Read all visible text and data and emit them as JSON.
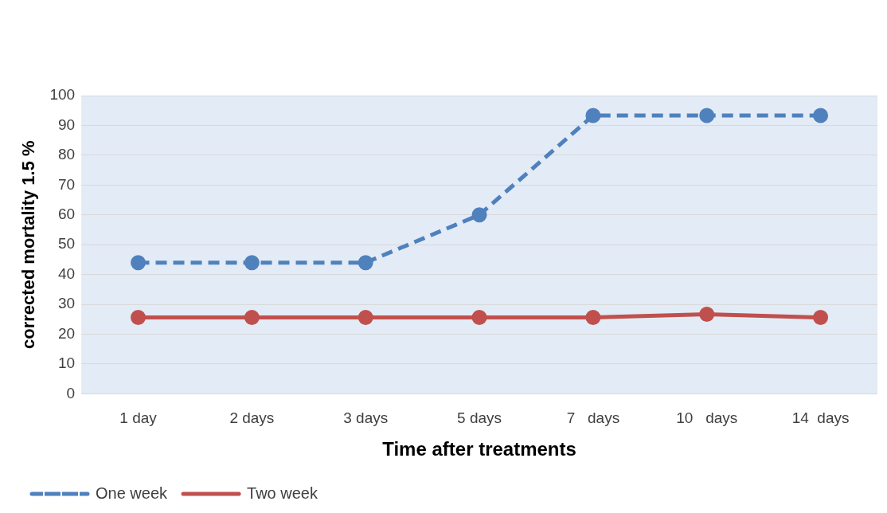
{
  "chart_data": {
    "type": "line",
    "xlabel": "Time after treatments",
    "ylabel": "corrected mortality 1.5 %",
    "categories": [
      "1 day",
      "2 days",
      "3 days",
      "5 days",
      "7   days",
      "10   days",
      "14  days"
    ],
    "series": [
      {
        "name": "One week",
        "color": "#4f81bd",
        "line_style": "dashed",
        "values": [
          44,
          44,
          44,
          60,
          93.3,
          93.3,
          93.3
        ]
      },
      {
        "name": "Two week",
        "color": "#c0504d",
        "line_style": "solid",
        "values": [
          25.6,
          25.6,
          25.6,
          25.6,
          25.6,
          26.7,
          25.6
        ]
      }
    ],
    "ylim": [
      0,
      100
    ],
    "yticks": [
      0,
      10,
      20,
      30,
      40,
      50,
      60,
      70,
      80,
      90,
      100
    ],
    "grid": "y",
    "legend": "bottom left",
    "marker": "circle"
  }
}
